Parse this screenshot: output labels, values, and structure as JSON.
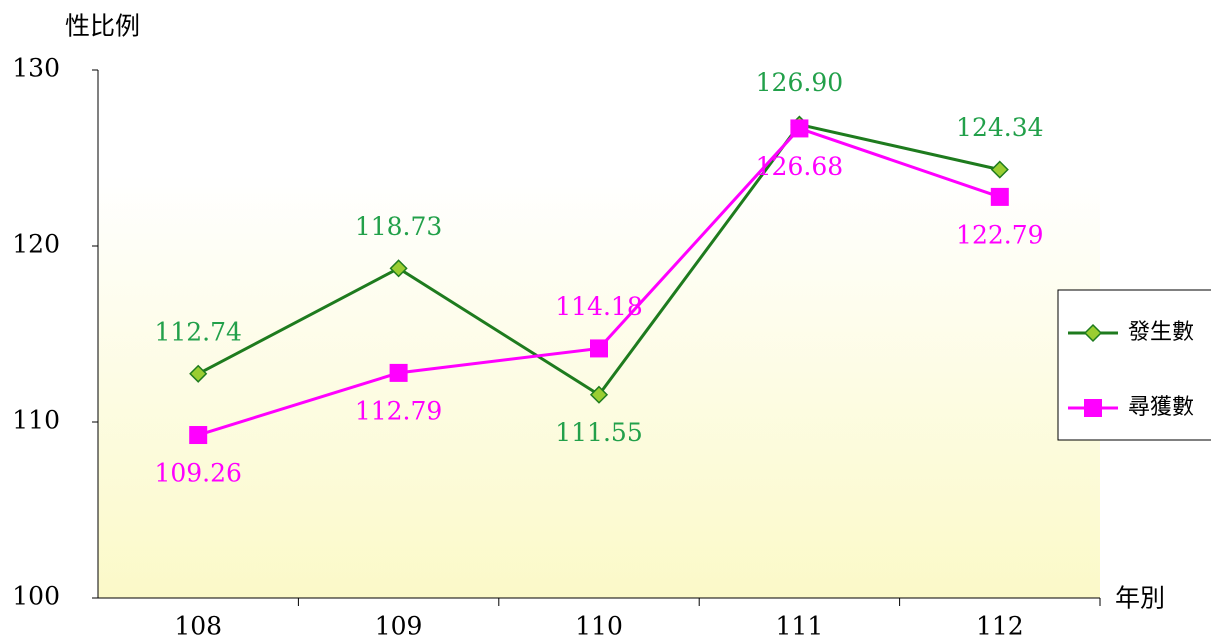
{
  "chart_data": {
    "type": "line",
    "y_label": "性比例",
    "x_label": "年別",
    "categories": [
      "108",
      "109",
      "110",
      "111",
      "112"
    ],
    "series": [
      {
        "name": "發生數",
        "color": "#1e7b1e",
        "marker_color": "#9acd32",
        "label_color": "#22a04a",
        "marker": "diamond",
        "values": [
          112.74,
          118.73,
          111.55,
          126.9,
          124.34
        ],
        "value_labels": [
          "112.74",
          "118.73",
          "111.55",
          "126.90",
          "124.34"
        ]
      },
      {
        "name": "尋獲數",
        "color": "#ff00ff",
        "marker_color": "#ff00ff",
        "label_color": "#ff00ff",
        "marker": "square",
        "values": [
          109.26,
          112.79,
          114.18,
          126.68,
          122.79
        ],
        "value_labels": [
          "109.26",
          "112.79",
          "114.18",
          "126.68",
          "122.79"
        ]
      }
    ],
    "ylim": [
      100,
      130
    ],
    "yticks": [
      100,
      110,
      120,
      130
    ],
    "legend": "right"
  }
}
